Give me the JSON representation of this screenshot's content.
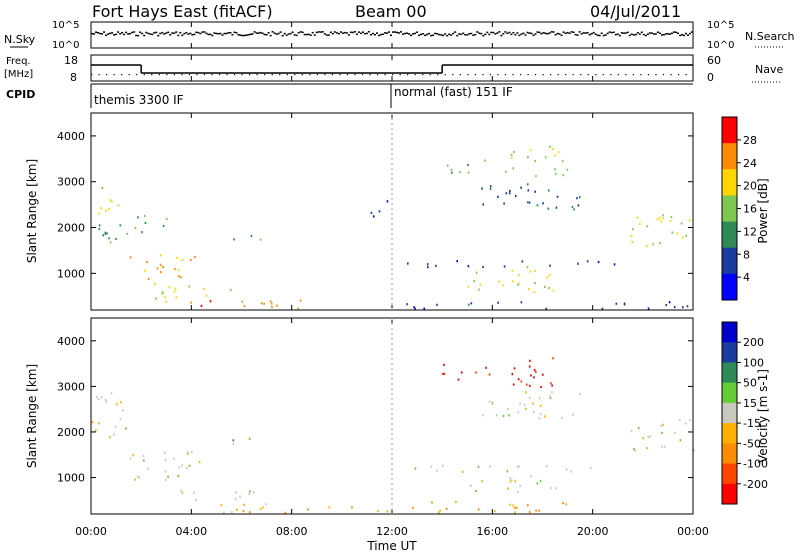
{
  "header": {
    "station": "Fort Hays East (fitACF)",
    "beam": "Beam 00",
    "date": "04/Jul/2011"
  },
  "top_panels": {
    "nsky_label": "N.Sky",
    "nsky_ticks": [
      "10^5",
      "10^0"
    ],
    "nsearch_label": "N.Search",
    "nsearch_ticks": [
      "10^5",
      "10^0"
    ],
    "freq_label": "Freq.",
    "freq_unit": "[MHz]",
    "freq_ticks": [
      "18",
      "8"
    ],
    "nave_label": "Nave",
    "nave_ticks": [
      "60",
      "0"
    ],
    "cpid_label": "CPID",
    "cpid_segments": [
      {
        "label": "themis 3300 IF",
        "start_hour": 0,
        "end_hour": 12
      },
      {
        "label": "normal (fast) 151 IF",
        "start_hour": 12,
        "end_hour": 24
      }
    ],
    "freq_steps": [
      {
        "start_hour": 0,
        "end_hour": 2,
        "level": 16
      },
      {
        "start_hour": 2,
        "end_hour": 14,
        "level": 12
      },
      {
        "start_hour": 14,
        "end_hour": 24,
        "level": 16
      }
    ]
  },
  "x_axis": {
    "label": "Time UT",
    "ticks": [
      "00:00",
      "04:00",
      "08:00",
      "12:00",
      "16:00",
      "20:00",
      "00:00"
    ]
  },
  "chart_data": [
    {
      "type": "heatmap",
      "ylabel": "Slant Range [km]",
      "xlabel": "Time UT",
      "xlim": [
        0,
        24
      ],
      "ylim": [
        200,
        4500
      ],
      "yticks": [
        "4000",
        "3000",
        "2000",
        "1000"
      ],
      "colorbar": {
        "label": "Power [dB]",
        "ticks": [
          "28",
          "24",
          "20",
          "16",
          "12",
          "8",
          "4"
        ],
        "range": [
          0,
          30
        ],
        "colors": [
          "#0000ff",
          "#1a3a9e",
          "#2e8b57",
          "#7ec850",
          "#ffd700",
          "#ff8c00",
          "#ff0000"
        ]
      },
      "regions": [
        {
          "t0": 0.0,
          "t1": 1.2,
          "r0": 2300,
          "r1": 2900,
          "value": 20
        },
        {
          "t0": 0.3,
          "t1": 3.0,
          "r0": 1700,
          "r1": 2300,
          "value": 12
        },
        {
          "t0": 1.5,
          "t1": 4.2,
          "r0": 900,
          "r1": 1500,
          "value": 22
        },
        {
          "t0": 2.5,
          "t1": 6.0,
          "r0": 400,
          "r1": 800,
          "value": 18
        },
        {
          "t0": 5.5,
          "t1": 6.8,
          "r0": 1700,
          "r1": 1900,
          "value": 12
        },
        {
          "t0": 3.0,
          "t1": 8.5,
          "r0": 250,
          "r1": 450,
          "value": 24
        },
        {
          "t0": 11.0,
          "t1": 12.0,
          "r0": 2200,
          "r1": 2600,
          "value": 6
        },
        {
          "t0": 14.0,
          "t1": 16.0,
          "r0": 3200,
          "r1": 3500,
          "value": 14
        },
        {
          "t0": 16.5,
          "t1": 19.0,
          "r0": 3100,
          "r1": 3800,
          "value": 16
        },
        {
          "t0": 15.0,
          "t1": 18.5,
          "r0": 600,
          "r1": 1200,
          "value": 18
        },
        {
          "t0": 15.5,
          "t1": 19.5,
          "r0": 2400,
          "r1": 3000,
          "value": 8
        },
        {
          "t0": 21.5,
          "t1": 24.0,
          "r0": 1500,
          "r1": 2300,
          "value": 18
        },
        {
          "t0": 12.0,
          "t1": 24.0,
          "r0": 250,
          "r1": 400,
          "value": 6
        },
        {
          "t0": 12.5,
          "t1": 21.0,
          "r0": 1150,
          "r1": 1300,
          "value": 6
        }
      ]
    },
    {
      "type": "heatmap",
      "ylabel": "Slant Range [km]",
      "xlabel": "Time UT",
      "xlim": [
        0,
        24
      ],
      "ylim": [
        200,
        4500
      ],
      "yticks": [
        "4000",
        "3000",
        "2000",
        "1000"
      ],
      "colorbar": {
        "label": "Velocity [m s-1]",
        "ticks": [
          "200",
          "100",
          "50",
          "15",
          "-15",
          "-50",
          "-100",
          "-200"
        ],
        "range": [
          -250,
          250
        ],
        "colors": [
          "#ff0000",
          "#ff4500",
          "#ff8c00",
          "#ffb000",
          "#c8c8bc",
          "#66cc33",
          "#2e8b57",
          "#1a3a9e",
          "#0000cc"
        ]
      },
      "regions": [
        {
          "t0": 0.0,
          "t1": 1.5,
          "r0": 1900,
          "r1": 2900,
          "value": 0
        },
        {
          "t0": 1.5,
          "t1": 4.5,
          "r0": 900,
          "r1": 1600,
          "value": 0
        },
        {
          "t0": 3.5,
          "t1": 6.5,
          "r0": 500,
          "r1": 800,
          "value": 0
        },
        {
          "t0": 5.5,
          "t1": 6.8,
          "r0": 1700,
          "r1": 1900,
          "value": 60
        },
        {
          "t0": 5.0,
          "t1": 12.0,
          "r0": 250,
          "r1": 450,
          "value": -60
        },
        {
          "t0": 12.0,
          "t1": 19.0,
          "r0": 250,
          "r1": 500,
          "value": -70
        },
        {
          "t0": 14.0,
          "t1": 16.0,
          "r0": 3150,
          "r1": 3500,
          "value": -220
        },
        {
          "t0": 16.5,
          "t1": 18.8,
          "r0": 2950,
          "r1": 3650,
          "value": -220
        },
        {
          "t0": 15.5,
          "t1": 19.5,
          "r0": 2300,
          "r1": 2900,
          "value": 0
        },
        {
          "t0": 21.5,
          "t1": 24.0,
          "r0": 1600,
          "r1": 2300,
          "value": 0
        },
        {
          "t0": 12.5,
          "t1": 21.0,
          "r0": 1150,
          "r1": 1300,
          "value": 0
        },
        {
          "t0": 15.0,
          "t1": 18.5,
          "r0": 700,
          "r1": 1100,
          "value": 0
        }
      ]
    }
  ]
}
